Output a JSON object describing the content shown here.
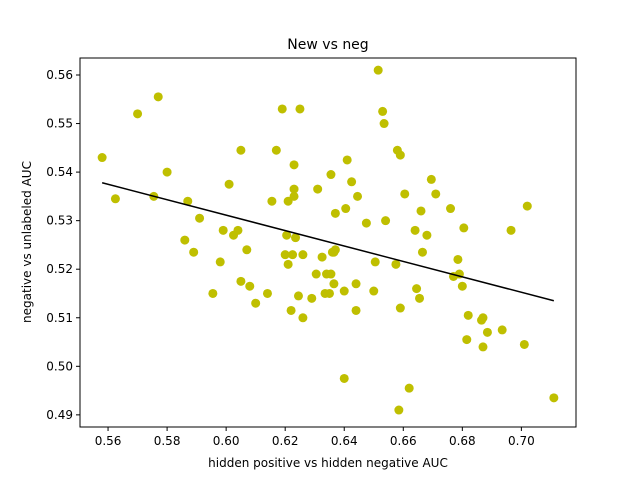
{
  "chart_data": {
    "type": "scatter",
    "title": "New vs neg",
    "xlabel": "hidden positive vs hidden negative  AUC",
    "ylabel": "negative vs unlabeled AUC",
    "xlim": [
      0.5505,
      0.7185
    ],
    "ylim": [
      0.4875,
      0.5635
    ],
    "xticks": [
      0.56,
      0.58,
      0.6,
      0.62,
      0.64,
      0.66,
      0.68,
      0.7
    ],
    "xtick_labels": [
      "0.56",
      "0.58",
      "0.60",
      "0.62",
      "0.64",
      "0.66",
      "0.68",
      "0.70"
    ],
    "yticks": [
      0.49,
      0.5,
      0.51,
      0.52,
      0.53,
      0.54,
      0.55,
      0.56
    ],
    "ytick_labels": [
      "0.49",
      "0.50",
      "0.51",
      "0.52",
      "0.53",
      "0.54",
      "0.55",
      "0.56"
    ],
    "grid": false,
    "point_color": "#bfbf00",
    "line_color": "#000000",
    "points": [
      [
        0.558,
        0.543
      ],
      [
        0.5625,
        0.5345
      ],
      [
        0.57,
        0.552
      ],
      [
        0.5755,
        0.535
      ],
      [
        0.577,
        0.5555
      ],
      [
        0.58,
        0.54
      ],
      [
        0.586,
        0.526
      ],
      [
        0.587,
        0.534
      ],
      [
        0.589,
        0.5235
      ],
      [
        0.591,
        0.5305
      ],
      [
        0.5955,
        0.515
      ],
      [
        0.598,
        0.5215
      ],
      [
        0.599,
        0.528
      ],
      [
        0.601,
        0.5375
      ],
      [
        0.6025,
        0.527
      ],
      [
        0.604,
        0.528
      ],
      [
        0.605,
        0.5175
      ],
      [
        0.605,
        0.5445
      ],
      [
        0.607,
        0.524
      ],
      [
        0.608,
        0.5165
      ],
      [
        0.61,
        0.513
      ],
      [
        0.614,
        0.515
      ],
      [
        0.6155,
        0.534
      ],
      [
        0.617,
        0.5445
      ],
      [
        0.619,
        0.553
      ],
      [
        0.62,
        0.523
      ],
      [
        0.6205,
        0.527
      ],
      [
        0.621,
        0.521
      ],
      [
        0.621,
        0.534
      ],
      [
        0.622,
        0.5115
      ],
      [
        0.6225,
        0.523
      ],
      [
        0.623,
        0.5365
      ],
      [
        0.623,
        0.5415
      ],
      [
        0.623,
        0.535
      ],
      [
        0.6235,
        0.5265
      ],
      [
        0.6245,
        0.5145
      ],
      [
        0.625,
        0.553
      ],
      [
        0.626,
        0.51
      ],
      [
        0.626,
        0.523
      ],
      [
        0.629,
        0.514
      ],
      [
        0.6305,
        0.519
      ],
      [
        0.631,
        0.5365
      ],
      [
        0.6325,
        0.5225
      ],
      [
        0.6335,
        0.515
      ],
      [
        0.634,
        0.519
      ],
      [
        0.635,
        0.515
      ],
      [
        0.6355,
        0.519
      ],
      [
        0.6355,
        0.5395
      ],
      [
        0.636,
        0.5235
      ],
      [
        0.6365,
        0.517
      ],
      [
        0.6365,
        0.5235
      ],
      [
        0.637,
        0.5315
      ],
      [
        0.637,
        0.524
      ],
      [
        0.64,
        0.5155
      ],
      [
        0.64,
        0.4975
      ],
      [
        0.6405,
        0.5325
      ],
      [
        0.641,
        0.5425
      ],
      [
        0.6425,
        0.538
      ],
      [
        0.644,
        0.5115
      ],
      [
        0.644,
        0.517
      ],
      [
        0.6445,
        0.535
      ],
      [
        0.6475,
        0.5295
      ],
      [
        0.65,
        0.5155
      ],
      [
        0.6505,
        0.5215
      ],
      [
        0.6515,
        0.561
      ],
      [
        0.653,
        0.5525
      ],
      [
        0.6535,
        0.55
      ],
      [
        0.654,
        0.53
      ],
      [
        0.6575,
        0.521
      ],
      [
        0.658,
        0.5445
      ],
      [
        0.6585,
        0.491
      ],
      [
        0.659,
        0.512
      ],
      [
        0.659,
        0.5435
      ],
      [
        0.6605,
        0.5355
      ],
      [
        0.662,
        0.4955
      ],
      [
        0.664,
        0.528
      ],
      [
        0.6645,
        0.516
      ],
      [
        0.6655,
        0.514
      ],
      [
        0.666,
        0.532
      ],
      [
        0.6665,
        0.5235
      ],
      [
        0.668,
        0.527
      ],
      [
        0.6695,
        0.5385
      ],
      [
        0.671,
        0.5355
      ],
      [
        0.676,
        0.5325
      ],
      [
        0.677,
        0.5185
      ],
      [
        0.6785,
        0.522
      ],
      [
        0.679,
        0.519
      ],
      [
        0.68,
        0.5165
      ],
      [
        0.6805,
        0.5285
      ],
      [
        0.6815,
        0.5055
      ],
      [
        0.682,
        0.5105
      ],
      [
        0.6865,
        0.5095
      ],
      [
        0.687,
        0.504
      ],
      [
        0.687,
        0.51
      ],
      [
        0.6885,
        0.507
      ],
      [
        0.6935,
        0.5075
      ],
      [
        0.6965,
        0.528
      ],
      [
        0.701,
        0.5045
      ],
      [
        0.702,
        0.533
      ],
      [
        0.711,
        0.4935
      ]
    ],
    "trend_line": {
      "x": [
        0.558,
        0.711
      ],
      "y": [
        0.5378,
        0.5135
      ]
    }
  }
}
